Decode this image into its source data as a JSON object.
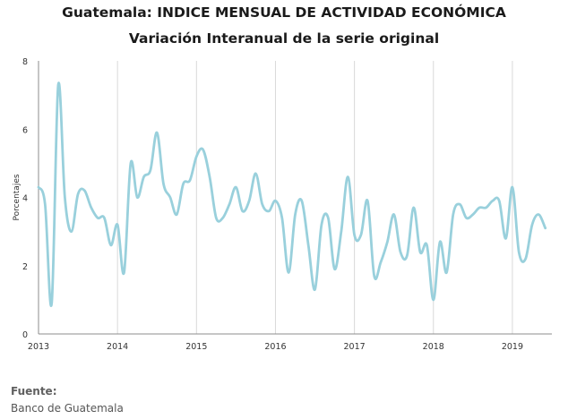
{
  "chart_data": {
    "type": "line",
    "title": "Guatemala: INDICE MENSUAL DE ACTIVIDAD ECONÓMICA",
    "subtitle": "Variación Interanual de la serie original",
    "xlabel": "",
    "ylabel": "Porcentajes",
    "ylim": [
      0,
      8
    ],
    "yticks": [
      "0",
      "2",
      "4",
      "6",
      "8"
    ],
    "xlim": [
      2013.0,
      2019.5
    ],
    "xticks": [
      "2013",
      "2014",
      "2015",
      "2016",
      "2017",
      "2018",
      "2019"
    ],
    "grid": "vertical",
    "line_color": "#99d0dc",
    "series": [
      {
        "x": [
          2013.0,
          2013.083,
          2013.167,
          2013.25,
          2013.333,
          2013.417,
          2013.5,
          2013.583,
          2013.667,
          2013.75,
          2013.833,
          2013.917,
          2014.0,
          2014.083,
          2014.167,
          2014.25,
          2014.333,
          2014.417,
          2014.5,
          2014.583,
          2014.667,
          2014.75,
          2014.833,
          2014.917,
          2015.0,
          2015.083,
          2015.167,
          2015.25,
          2015.333,
          2015.417,
          2015.5,
          2015.583,
          2015.667,
          2015.75,
          2015.833,
          2015.917,
          2016.0,
          2016.083,
          2016.167,
          2016.25,
          2016.333,
          2016.417,
          2016.5,
          2016.583,
          2016.667,
          2016.75,
          2016.833,
          2016.917,
          2017.0,
          2017.083,
          2017.167,
          2017.25,
          2017.333,
          2017.417,
          2017.5,
          2017.583,
          2017.667,
          2017.75,
          2017.833,
          2017.917,
          2018.0,
          2018.083,
          2018.167,
          2018.25,
          2018.333,
          2018.417,
          2018.5,
          2018.583,
          2018.667,
          2018.75,
          2018.833,
          2018.917,
          2019.0,
          2019.083,
          2019.167,
          2019.25,
          2019.333,
          2019.417
        ],
        "values": [
          4.3,
          3.8,
          0.9,
          7.3,
          4.0,
          3.0,
          4.1,
          4.2,
          3.7,
          3.4,
          3.4,
          2.6,
          3.2,
          1.8,
          5.0,
          4.0,
          4.6,
          4.8,
          5.9,
          4.4,
          4.0,
          3.5,
          4.4,
          4.5,
          5.2,
          5.4,
          4.6,
          3.4,
          3.4,
          3.8,
          4.3,
          3.6,
          3.9,
          4.7,
          3.8,
          3.6,
          3.9,
          3.4,
          1.8,
          3.5,
          3.9,
          2.6,
          1.3,
          3.2,
          3.4,
          1.9,
          3.0,
          4.6,
          2.9,
          2.9,
          3.9,
          1.7,
          2.1,
          2.7,
          3.5,
          2.4,
          2.3,
          3.7,
          2.4,
          2.6,
          1.0,
          2.7,
          1.8,
          3.5,
          3.8,
          3.4,
          3.5,
          3.7,
          3.7,
          3.9,
          3.9,
          2.8,
          4.3,
          2.4,
          2.2,
          3.2,
          3.5,
          3.1
        ]
      }
    ]
  },
  "footer": {
    "source_label": "Fuente:",
    "source_value": "Banco de Guatemala"
  }
}
